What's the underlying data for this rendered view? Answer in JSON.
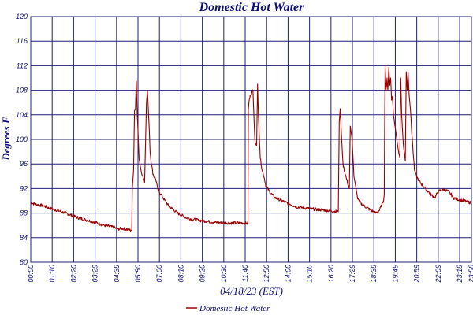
{
  "chart_data": {
    "type": "line",
    "title": "Domestic Hot Water",
    "xlabel": "04/18/23 (EST)",
    "ylabel": "Degrees F",
    "ylim": [
      80,
      120
    ],
    "yticks": [
      80,
      84,
      88,
      92,
      96,
      100,
      104,
      108,
      112,
      116,
      120
    ],
    "xlim_hours": [
      0,
      24
    ],
    "xticks": [
      "00:00",
      "01:10",
      "02:20",
      "03:29",
      "04:39",
      "05:50",
      "07:00",
      "08:10",
      "09:20",
      "10:30",
      "11:40",
      "12:50",
      "14:00",
      "15:10",
      "16:20",
      "17:29",
      "18:39",
      "19:49",
      "20:59",
      "22:09",
      "23:19",
      "23:58"
    ],
    "grid": true,
    "line_color": "#990000",
    "grid_color": "#1f1f7a",
    "legend": {
      "position": "bottom",
      "entries": [
        "Domestic Hot Water"
      ]
    },
    "series": [
      {
        "name": "Domestic Hot Water",
        "x": [
          0,
          0.3,
          0.7,
          1.0,
          1.5,
          2.0,
          2.5,
          3.0,
          3.5,
          4.0,
          4.5,
          4.75,
          5.0,
          5.5,
          5.53,
          5.6,
          5.65,
          5.7,
          5.75,
          5.78,
          5.8,
          5.85,
          5.9,
          6.0,
          6.1,
          6.2,
          6.3,
          6.35,
          6.4,
          6.45,
          6.5,
          6.55,
          6.6,
          6.65,
          6.7,
          6.75,
          6.8,
          6.85,
          6.9,
          7.0,
          7.2,
          7.5,
          8.0,
          8.5,
          9.0,
          9.5,
          10.0,
          10.5,
          11.0,
          11.5,
          11.83,
          11.85,
          11.9,
          12.0,
          12.1,
          12.2,
          12.3,
          12.35,
          12.4,
          12.45,
          12.5,
          12.6,
          12.7,
          12.8,
          13.0,
          13.3,
          13.7,
          14.0,
          14.5,
          15.0,
          15.5,
          16.0,
          16.5,
          16.75,
          16.8,
          16.85,
          17.0,
          17.2,
          17.35,
          17.4,
          17.45,
          17.5,
          17.6,
          17.8,
          18.0,
          18.5,
          18.8,
          19.0,
          19.2,
          19.25,
          19.3,
          19.35,
          19.4,
          19.45,
          19.5,
          19.55,
          19.6,
          19.65,
          19.7,
          19.75,
          19.8,
          19.85,
          20.0,
          20.1,
          20.15,
          20.2,
          20.25,
          20.3,
          20.4,
          20.45,
          20.5,
          20.55,
          20.6,
          20.65,
          20.7,
          20.75,
          20.8,
          20.85,
          20.9,
          21.0,
          21.2,
          21.5,
          21.8,
          22.0,
          22.2,
          22.3,
          22.5,
          22.7,
          22.9,
          23.0,
          23.2,
          23.4,
          23.6,
          23.8,
          23.97
        ],
        "y": [
          89.7,
          89.4,
          89.2,
          88.8,
          88.4,
          87.9,
          87.3,
          86.9,
          86.5,
          86.0,
          85.7,
          85.4,
          85.5,
          85.2,
          92.0,
          95.0,
          104.5,
          105.0,
          109.5,
          106.0,
          104.0,
          100.5,
          97.0,
          95.0,
          94.0,
          93.0,
          106.0,
          108.0,
          105.0,
          102.0,
          98.0,
          96.5,
          95.5,
          94.5,
          94.0,
          93.8,
          93.5,
          93.0,
          92.0,
          91.5,
          90.5,
          89.2,
          88.0,
          87.2,
          86.9,
          86.7,
          86.5,
          86.4,
          86.4,
          86.4,
          86.3,
          105.0,
          106.5,
          107.5,
          108.0,
          100.0,
          99.0,
          109.0,
          104.0,
          100.0,
          97.0,
          95.0,
          94.0,
          92.5,
          91.5,
          90.5,
          90.0,
          89.6,
          89.0,
          88.8,
          88.6,
          88.5,
          88.3,
          88.2,
          103.0,
          105.0,
          96.0,
          93.5,
          92.0,
          102.0,
          101.0,
          100.0,
          94.0,
          90.5,
          89.5,
          88.5,
          88.0,
          88.5,
          90.0,
          91.0,
          112.0,
          108.0,
          110.0,
          108.0,
          111.5,
          109.0,
          110.0,
          106.5,
          107.0,
          104.0,
          103.0,
          102.0,
          98.5,
          97.0,
          110.0,
          104.0,
          101.0,
          99.0,
          96.5,
          111.0,
          108.0,
          111.0,
          107.5,
          106.0,
          104.0,
          101.0,
          99.0,
          97.0,
          95.0,
          94.0,
          93.0,
          92.0,
          91.0,
          90.5,
          91.5,
          91.7,
          91.8,
          91.6,
          91.0,
          90.5,
          90.3,
          90.1,
          90.0,
          89.8,
          89.7
        ]
      }
    ]
  }
}
